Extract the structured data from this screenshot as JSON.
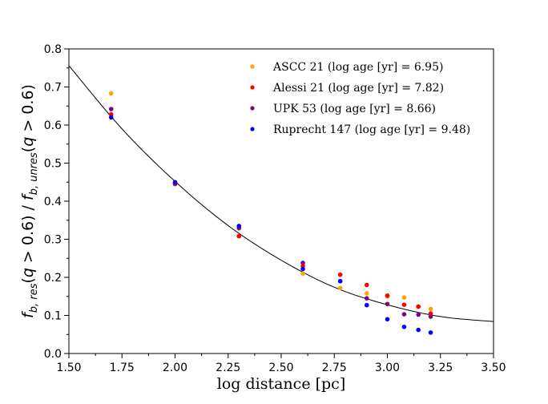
{
  "chart_data": {
    "type": "scatter",
    "title": "",
    "xlabel": "log distance [pc]",
    "ylabel": "f_{b,res}(q > 0.6) / f_{b,unres}(q > 0.6)",
    "xlim": [
      1.5,
      3.5
    ],
    "ylim": [
      0.0,
      0.8
    ],
    "xticks": [
      "1.50",
      "1.75",
      "2.00",
      "2.25",
      "2.50",
      "2.75",
      "3.00",
      "3.25",
      "3.50"
    ],
    "yticks": [
      "0.0",
      "0.1",
      "0.2",
      "0.3",
      "0.4",
      "0.5",
      "0.6",
      "0.7",
      "0.8"
    ],
    "grid": false,
    "legend_position": "top-right",
    "x": [
      1.699,
      2.0,
      2.301,
      2.602,
      2.778,
      2.903,
      3.0,
      3.079,
      3.146,
      3.204
    ],
    "series": [
      {
        "name": "ASCC 21 (log age [yr] = 6.95)",
        "color": "#ffa500",
        "values": [
          0.683,
          0.448,
          0.328,
          0.21,
          0.172,
          0.158,
          0.15,
          0.147,
          0.123,
          0.117
        ]
      },
      {
        "name": "Alessi 21 (log age [yr] = 7.82)",
        "color": "#ff0000",
        "values": [
          0.628,
          0.445,
          0.308,
          0.23,
          0.207,
          0.18,
          0.152,
          0.128,
          0.123,
          0.105
        ]
      },
      {
        "name": "UPK 53 (log age [yr] = 8.66)",
        "color": "#800080",
        "values": [
          0.642,
          0.447,
          0.33,
          0.238,
          0.19,
          0.145,
          0.13,
          0.103,
          0.102,
          0.097
        ]
      },
      {
        "name": "Ruprecht 147 (log age [yr] = 9.48)",
        "color": "#0000ff",
        "values": [
          0.62,
          0.45,
          0.335,
          0.222,
          0.19,
          0.127,
          0.09,
          0.07,
          0.062,
          0.055
        ]
      }
    ],
    "fit_curve": {
      "name": "quadratic fit",
      "color": "#000000",
      "x": [
        1.5,
        1.75,
        2.0,
        2.25,
        2.5,
        2.75,
        3.0,
        3.25,
        3.5
      ],
      "y": [
        0.756,
        0.59,
        0.452,
        0.336,
        0.245,
        0.174,
        0.128,
        0.097,
        0.084
      ]
    }
  }
}
